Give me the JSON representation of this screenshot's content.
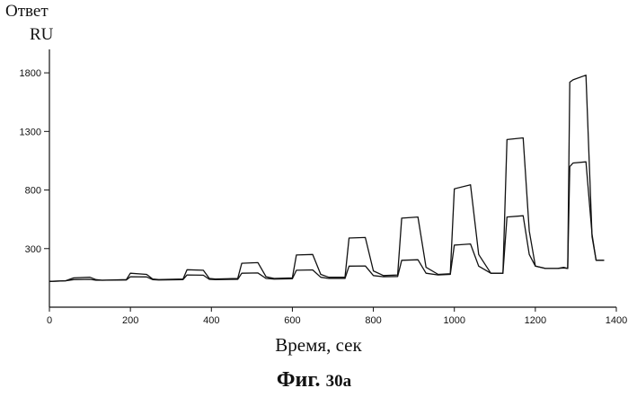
{
  "chart_data": {
    "type": "line",
    "ylabel_line1": "Ответ",
    "ylabel_line2": "RU",
    "xlabel": "Время, сек",
    "caption_prefix": "Фиг.",
    "caption_number": "30а",
    "x_ticks": [
      0,
      200,
      400,
      600,
      800,
      1000,
      1200,
      1400
    ],
    "y_ticks": [
      300,
      800,
      1300,
      1800
    ],
    "xlim": [
      0,
      1400
    ],
    "ylim": [
      -200,
      2000
    ],
    "grid": false,
    "legend": "none",
    "series": [
      {
        "x": [
          0,
          40,
          60,
          100,
          115,
          130,
          190,
          200,
          240,
          255,
          270,
          330,
          340,
          380,
          395,
          410,
          465,
          475,
          515,
          535,
          555,
          600,
          610,
          650,
          670,
          690,
          730,
          740,
          780,
          800,
          825,
          860,
          870,
          910,
          930,
          960,
          990,
          1000,
          1040,
          1060,
          1090,
          1120,
          1130,
          1170,
          1185,
          1200,
          1225,
          1255,
          1270,
          1280,
          1285,
          1293,
          1325,
          1340,
          1350,
          1370
        ],
        "y": [
          20,
          25,
          50,
          55,
          35,
          30,
          35,
          90,
          80,
          40,
          35,
          40,
          120,
          115,
          45,
          40,
          45,
          175,
          180,
          60,
          45,
          50,
          245,
          250,
          80,
          55,
          55,
          390,
          395,
          110,
          70,
          75,
          560,
          570,
          140,
          80,
          85,
          810,
          845,
          250,
          90,
          90,
          1230,
          1245,
          450,
          150,
          130,
          130,
          140,
          130,
          1720,
          1740,
          1780,
          400,
          200,
          200
        ]
      },
      {
        "x": [
          0,
          40,
          60,
          100,
          115,
          130,
          190,
          200,
          240,
          255,
          270,
          330,
          340,
          380,
          395,
          410,
          465,
          475,
          515,
          535,
          555,
          600,
          610,
          650,
          670,
          690,
          730,
          740,
          780,
          800,
          825,
          860,
          870,
          910,
          930,
          960,
          990,
          1000,
          1040,
          1060,
          1090,
          1120,
          1130,
          1170,
          1185,
          1200,
          1225,
          1255,
          1270,
          1280,
          1285,
          1293,
          1325,
          1340,
          1350,
          1370
        ],
        "y": [
          20,
          25,
          35,
          38,
          30,
          30,
          32,
          60,
          58,
          35,
          32,
          35,
          75,
          73,
          38,
          35,
          38,
          90,
          92,
          45,
          40,
          42,
          115,
          118,
          55,
          45,
          45,
          150,
          152,
          70,
          60,
          62,
          200,
          205,
          90,
          75,
          80,
          330,
          340,
          150,
          90,
          90,
          570,
          580,
          250,
          150,
          130,
          130,
          135,
          130,
          1000,
          1030,
          1040,
          420,
          200,
          200
        ]
      }
    ]
  }
}
